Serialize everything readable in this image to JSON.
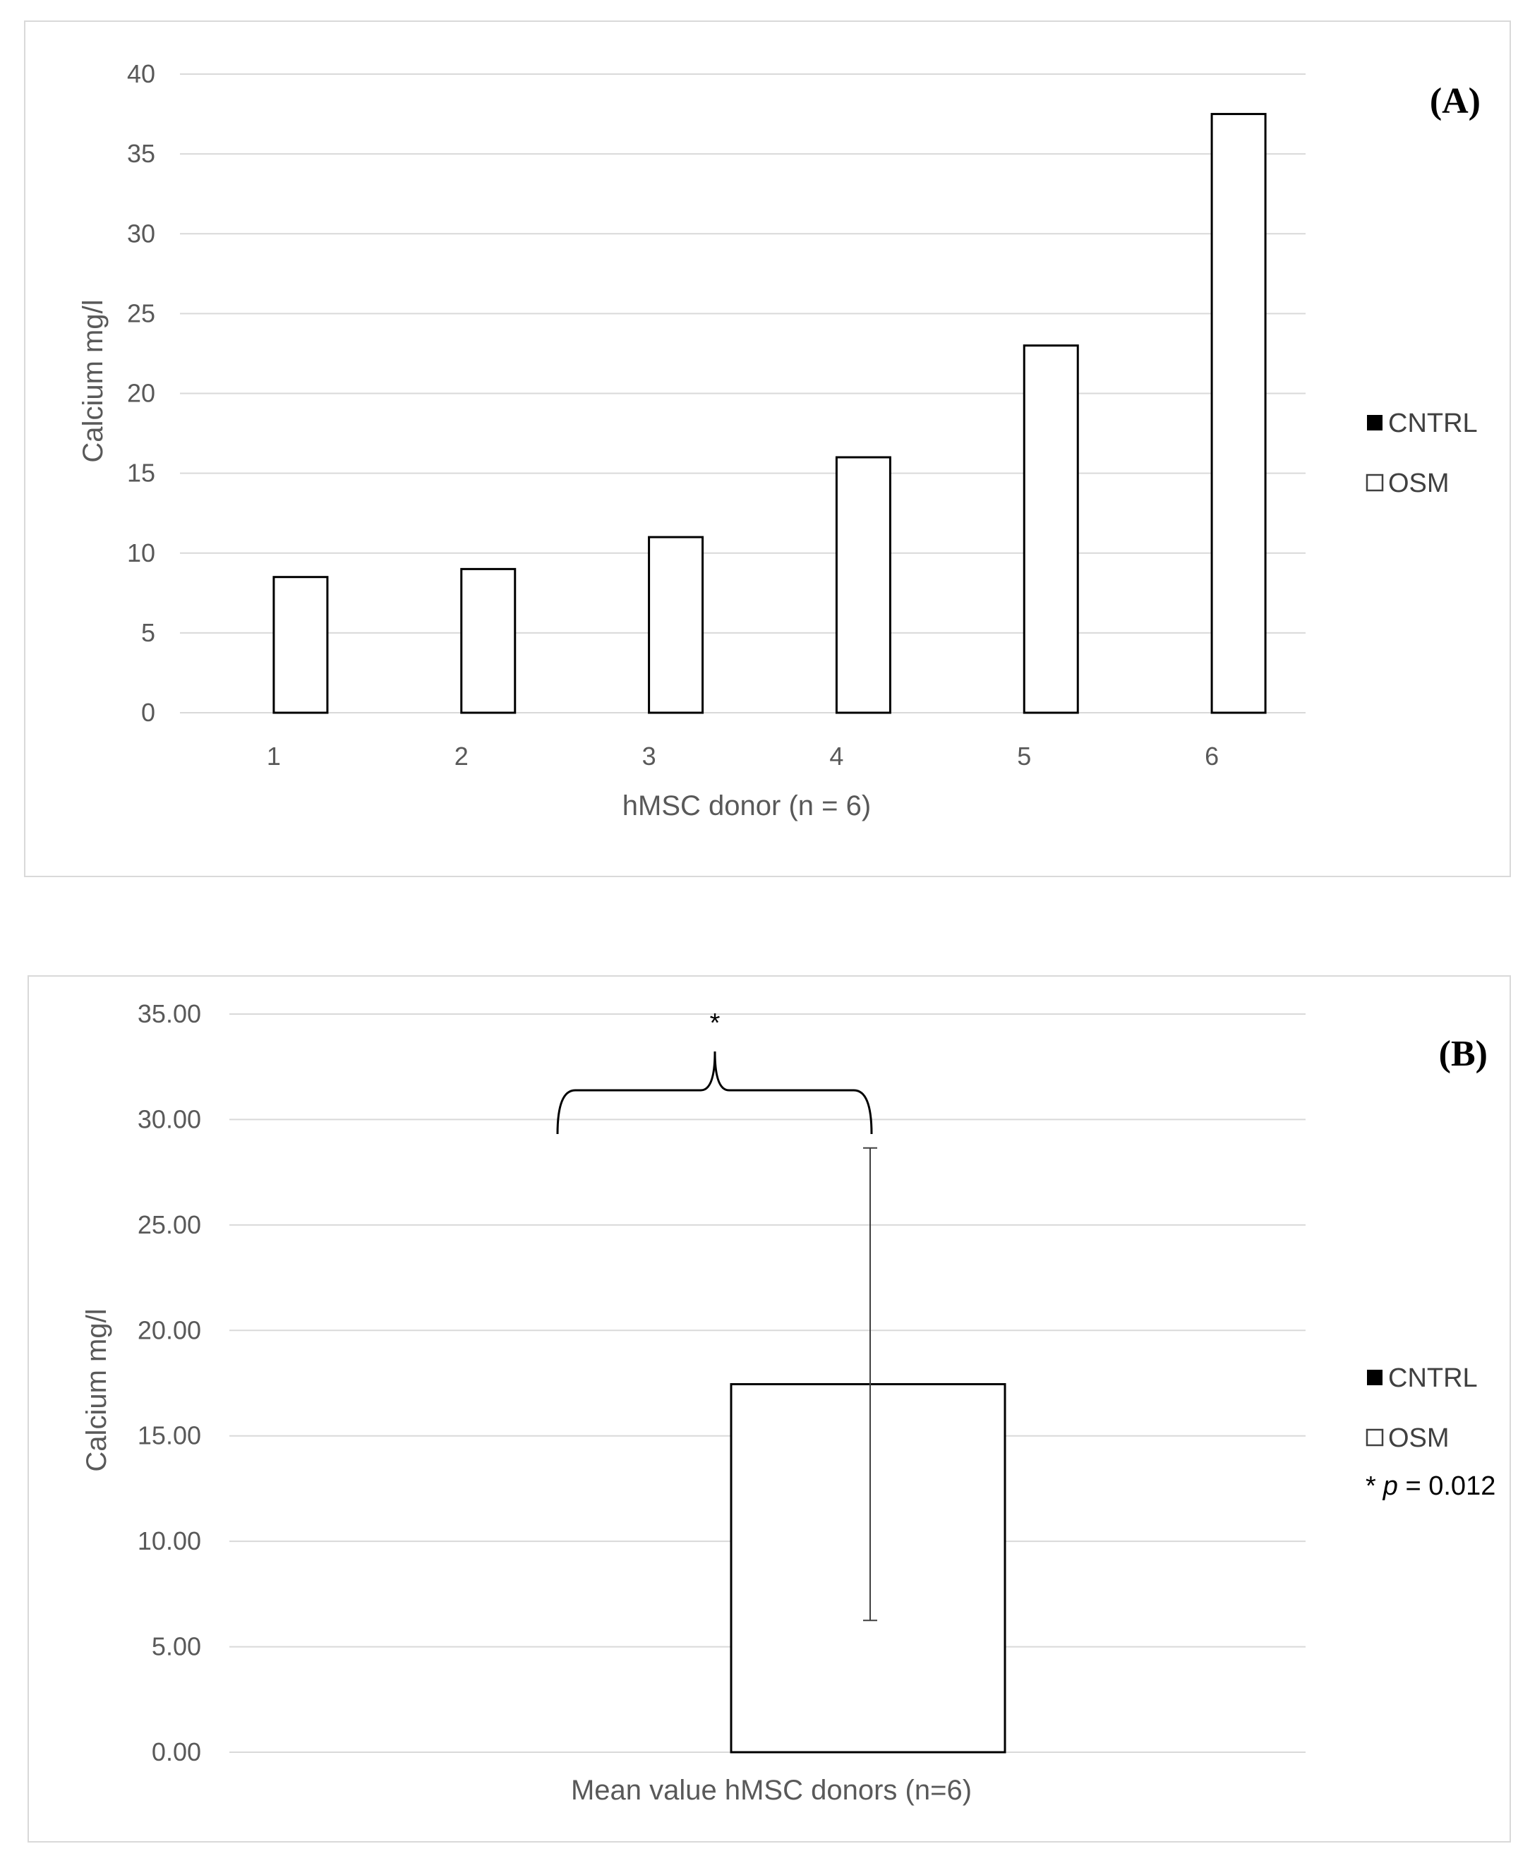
{
  "chart_data": [
    {
      "panel": "(A)",
      "type": "bar",
      "categories": [
        "1",
        "2",
        "3",
        "4",
        "5",
        "6"
      ],
      "series": [
        {
          "name": "CNTRL",
          "values": [
            0,
            0,
            0,
            0,
            0,
            0
          ]
        },
        {
          "name": "OSM",
          "values": [
            8.5,
            9,
            11,
            16,
            23,
            37.5
          ]
        }
      ],
      "xlabel": "hMSC donor (n = 6)",
      "ylabel": "Calcium mg/l",
      "ylim": [
        0,
        40
      ],
      "yticks": [
        "0",
        "5",
        "10",
        "15",
        "20",
        "25",
        "30",
        "35",
        "40"
      ],
      "grid": true,
      "legend": {
        "placement": "right",
        "entries": [
          "CNTRL",
          "OSM"
        ]
      }
    },
    {
      "panel": "(B)",
      "type": "bar",
      "categories": [
        "Mean value hMSC donors (n=6)"
      ],
      "series": [
        {
          "name": "CNTRL",
          "values": [
            0
          ]
        },
        {
          "name": "OSM",
          "values": [
            17.45
          ],
          "error": [
            11.2
          ]
        }
      ],
      "xlabel": "Mean value hMSC donors (n=6)",
      "ylabel": "Calcium mg/l",
      "ylim": [
        0,
        35
      ],
      "yticks": [
        "0.00",
        "5.00",
        "10.00",
        "15.00",
        "20.00",
        "25.00",
        "30.00",
        "35.00"
      ],
      "grid": true,
      "significance": {
        "marker": "*",
        "note_prefix": "*",
        "note_var": "p",
        "note_rest": " = 0.012"
      },
      "legend": {
        "placement": "right",
        "entries": [
          "CNTRL",
          "OSM"
        ]
      }
    }
  ]
}
